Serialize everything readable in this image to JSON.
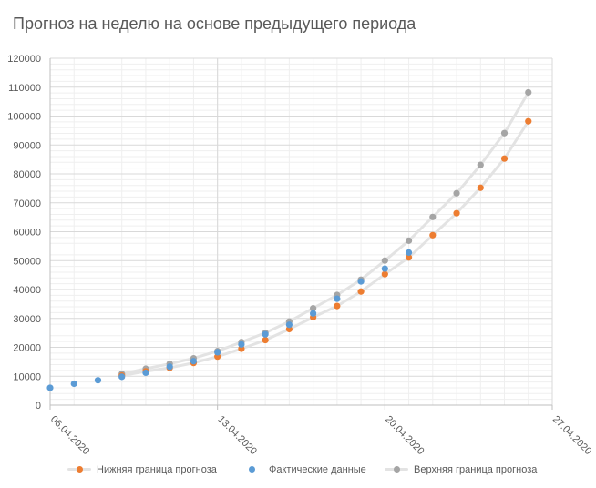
{
  "chart_data": {
    "type": "scatter",
    "title": "Прогноз на неделю на основе предыдущего периода",
    "xlabel": "",
    "ylabel": "",
    "x_axis": {
      "min": "06.04.2020",
      "max": "27.04.2020",
      "tick_labels": [
        "06.04.2020",
        "13.04.2020",
        "20.04.2020",
        "27.04.2020"
      ]
    },
    "ylim": [
      0,
      120000
    ],
    "y_ticks": [
      0,
      10000,
      20000,
      30000,
      40000,
      50000,
      60000,
      70000,
      80000,
      90000,
      100000,
      110000,
      120000
    ],
    "grid": true,
    "legend_position": "bottom",
    "colors": {
      "lower": "#ed7d31",
      "actual": "#5b9bd5",
      "upper": "#a5a5a5",
      "trend": "#e3e3e3",
      "grid_major": "#d9d9d9",
      "grid_minor": "#efefef",
      "axis": "#bfbfbf"
    },
    "series": [
      {
        "name": "Нижняя граница прогноза",
        "key": "lower",
        "points": [
          [
            "09.04.2020",
            10200
          ],
          [
            "10.04.2020",
            11700
          ],
          [
            "11.04.2020",
            12900
          ],
          [
            "12.04.2020",
            14600
          ],
          [
            "13.04.2020",
            16800
          ],
          [
            "14.04.2020",
            19500
          ],
          [
            "15.04.2020",
            22500
          ],
          [
            "16.04.2020",
            26300
          ],
          [
            "17.04.2020",
            30400
          ],
          [
            "18.04.2020",
            34300
          ],
          [
            "19.04.2020",
            39300
          ],
          [
            "20.04.2020",
            45300
          ],
          [
            "21.04.2020",
            51100
          ],
          [
            "22.04.2020",
            58800
          ],
          [
            "23.04.2020",
            66400
          ],
          [
            "24.04.2020",
            75200
          ],
          [
            "25.04.2020",
            85300
          ],
          [
            "26.04.2020",
            98200
          ]
        ]
      },
      {
        "name": "Фактические данные",
        "key": "actual",
        "points": [
          [
            "06.04.2020",
            6000
          ],
          [
            "07.04.2020",
            7400
          ],
          [
            "08.04.2020",
            8600
          ],
          [
            "09.04.2020",
            9800
          ],
          [
            "10.04.2020",
            11200
          ],
          [
            "11.04.2020",
            13300
          ],
          [
            "12.04.2020",
            15200
          ],
          [
            "13.04.2020",
            18300
          ],
          [
            "14.04.2020",
            21000
          ],
          [
            "15.04.2020",
            24500
          ],
          [
            "16.04.2020",
            27800
          ],
          [
            "17.04.2020",
            31700
          ],
          [
            "18.04.2020",
            36800
          ],
          [
            "19.04.2020",
            42800
          ],
          [
            "20.04.2020",
            47200
          ],
          [
            "21.04.2020",
            52800
          ]
        ]
      },
      {
        "name": "Верхняя граница прогноза",
        "key": "upper",
        "points": [
          [
            "09.04.2020",
            10800
          ],
          [
            "10.04.2020",
            12600
          ],
          [
            "11.04.2020",
            14300
          ],
          [
            "12.04.2020",
            16200
          ],
          [
            "13.04.2020",
            18700
          ],
          [
            "14.04.2020",
            21800
          ],
          [
            "15.04.2020",
            25000
          ],
          [
            "16.04.2020",
            28900
          ],
          [
            "17.04.2020",
            33500
          ],
          [
            "18.04.2020",
            38100
          ],
          [
            "19.04.2020",
            43400
          ],
          [
            "20.04.2020",
            50000
          ],
          [
            "21.04.2020",
            56900
          ],
          [
            "22.04.2020",
            65100
          ],
          [
            "23.04.2020",
            73300
          ],
          [
            "24.04.2020",
            83100
          ],
          [
            "25.04.2020",
            94100
          ],
          [
            "26.04.2020",
            108200
          ]
        ]
      }
    ]
  }
}
